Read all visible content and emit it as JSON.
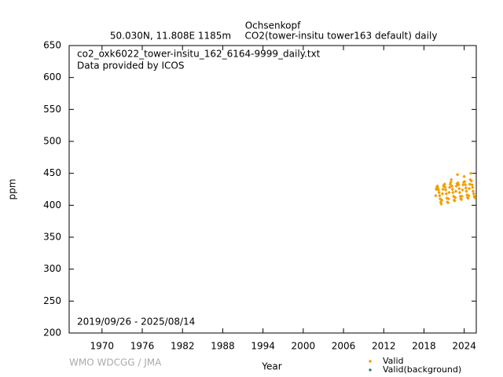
{
  "chart_data": {
    "type": "scatter",
    "title": "Ochsenkopf",
    "subtitle_left": "50.030N, 11.808E 1185m",
    "subtitle_right": "CO2(tower-insitu tower163 default) daily",
    "annotations": [
      "co2_oxk6022_tower-insitu_162_6164-9999_daily.txt",
      "Data provided by ICOS",
      "2019/09/26 - 2025/08/14"
    ],
    "credit": "WMO WDCGG / JMA",
    "xlabel": "Year",
    "ylabel": "ppm",
    "xlim": [
      1965.1,
      2025.8
    ],
    "ylim": [
      200,
      650
    ],
    "xticks": [
      1970,
      1976,
      1982,
      1988,
      1994,
      2000,
      2006,
      2012,
      2018,
      2024
    ],
    "yticks": [
      200,
      250,
      300,
      350,
      400,
      450,
      500,
      550,
      600,
      650
    ],
    "grid": false,
    "legend": "bottom-right",
    "series": [
      {
        "name": "Valid",
        "color": "#f0a000",
        "x": [
          2019.75,
          2019.83,
          2019.92,
          2020.0,
          2020.08,
          2020.17,
          2020.25,
          2020.33,
          2020.42,
          2020.5,
          2020.58,
          2020.67,
          2020.75,
          2020.83,
          2020.92,
          2021.0,
          2021.08,
          2021.17,
          2021.25,
          2021.33,
          2021.42,
          2021.5,
          2021.58,
          2021.67,
          2021.75,
          2021.83,
          2021.92,
          2022.0,
          2022.08,
          2022.17,
          2022.25,
          2022.33,
          2022.42,
          2022.5,
          2022.58,
          2022.67,
          2022.75,
          2022.83,
          2022.92,
          2023.0,
          2023.08,
          2023.17,
          2023.25,
          2023.33,
          2023.42,
          2023.5,
          2023.58,
          2023.67,
          2023.75,
          2023.83,
          2023.92,
          2024.0,
          2024.08,
          2024.17,
          2024.25,
          2024.33,
          2024.42,
          2024.5,
          2024.58,
          2024.67,
          2024.75,
          2024.83,
          2024.92,
          2025.0,
          2025.08,
          2025.17,
          2025.25,
          2025.33,
          2025.42,
          2025.5,
          2025.58
        ],
        "values": [
          415,
          425,
          428,
          430,
          427,
          424,
          420,
          415,
          410,
          405,
          402,
          408,
          418,
          425,
          430,
          432,
          433,
          428,
          424,
          418,
          411,
          405,
          404,
          410,
          420,
          428,
          433,
          436,
          440,
          430,
          425,
          420,
          414,
          408,
          407,
          412,
          422,
          430,
          434,
          448,
          435,
          432,
          426,
          420,
          414,
          410,
          409,
          414,
          424,
          432,
          436,
          445,
          437,
          432,
          427,
          422,
          416,
          412,
          411,
          415,
          426,
          433,
          440,
          450,
          438,
          432,
          428,
          422,
          418,
          414,
          412
        ]
      },
      {
        "name": "Valid(background)",
        "color": "#2e8b6f",
        "x": [],
        "values": []
      }
    ]
  }
}
